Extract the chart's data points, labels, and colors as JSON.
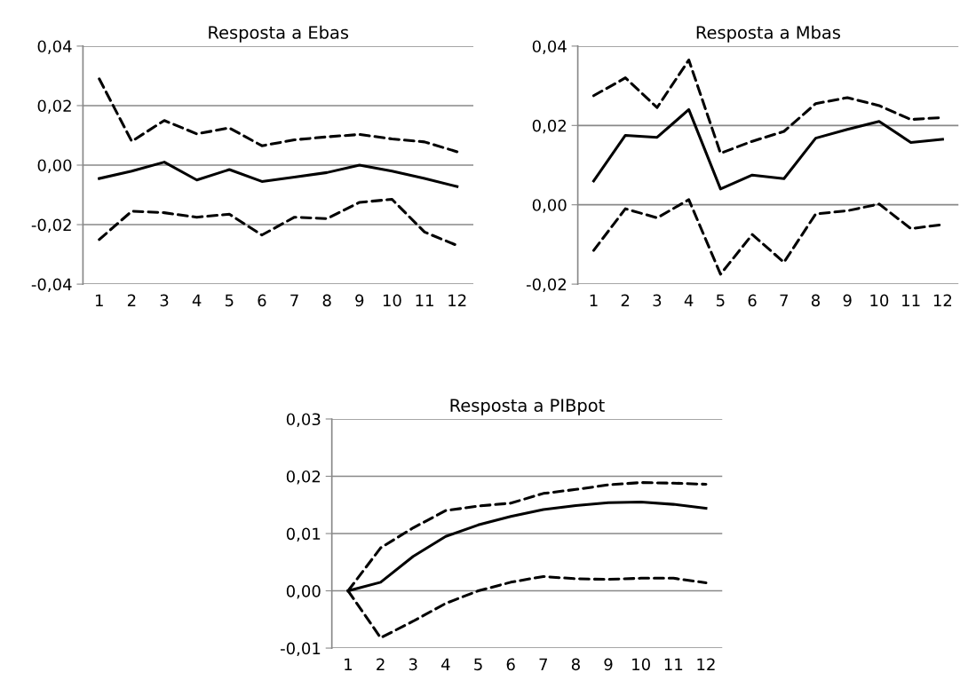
{
  "chart_data": [
    {
      "type": "line",
      "title": "Resposta a Ebas",
      "categories": [
        "1",
        "2",
        "3",
        "4",
        "5",
        "6",
        "7",
        "8",
        "9",
        "10",
        "11",
        "12"
      ],
      "ylim": [
        -0.04,
        0.04
      ],
      "yticks": [
        {
          "value": -0.04,
          "label": "-0,04"
        },
        {
          "value": -0.02,
          "label": "-0,02"
        },
        {
          "value": 0,
          "label": "0,00"
        },
        {
          "value": 0.02,
          "label": "0,02"
        },
        {
          "value": 0.04,
          "label": "0,04"
        }
      ],
      "grid": "y",
      "legend": false,
      "series": [
        {
          "color": "#000000",
          "line_style": "solid",
          "values": [
            -0.0045,
            -0.002,
            0.001,
            -0.005,
            -0.0015,
            -0.0055,
            -0.004,
            -0.0025,
            0.0,
            -0.002,
            -0.0045,
            -0.0072
          ]
        },
        {
          "color": "#000000",
          "line_style": "dashed",
          "values": [
            0.029,
            0.008,
            0.015,
            0.0105,
            0.0125,
            0.0065,
            0.0085,
            0.0095,
            0.0103,
            0.0088,
            0.0078,
            0.0045
          ]
        },
        {
          "color": "#000000",
          "line_style": "dashed",
          "values": [
            -0.025,
            -0.0155,
            -0.016,
            -0.0175,
            -0.0165,
            -0.0235,
            -0.0175,
            -0.018,
            -0.0125,
            -0.0115,
            -0.0225,
            -0.027
          ]
        }
      ]
    },
    {
      "type": "line",
      "title": "Resposta a Mbas",
      "categories": [
        "1",
        "2",
        "3",
        "4",
        "5",
        "6",
        "7",
        "8",
        "9",
        "10",
        "11",
        "12"
      ],
      "ylim": [
        -0.02,
        0.04
      ],
      "yticks": [
        {
          "value": -0.02,
          "label": "-0,02"
        },
        {
          "value": 0,
          "label": "0,00"
        },
        {
          "value": 0.02,
          "label": "0,02"
        },
        {
          "value": 0.04,
          "label": "0,04"
        }
      ],
      "grid": "y",
      "legend": false,
      "series": [
        {
          "color": "#000000",
          "line_style": "solid",
          "values": [
            0.006,
            0.0175,
            0.017,
            0.024,
            0.004,
            0.0075,
            0.0066,
            0.0168,
            0.019,
            0.021,
            0.0157,
            0.0165
          ]
        },
        {
          "color": "#000000",
          "line_style": "dashed",
          "values": [
            0.0275,
            0.032,
            0.0245,
            0.0365,
            0.013,
            0.016,
            0.0185,
            0.0255,
            0.027,
            0.025,
            0.0215,
            0.022
          ]
        },
        {
          "color": "#000000",
          "line_style": "dashed",
          "values": [
            -0.0115,
            -0.001,
            -0.0033,
            0.0013,
            -0.0175,
            -0.0075,
            -0.0145,
            -0.0023,
            -0.0015,
            0.0002,
            -0.006,
            -0.005
          ]
        }
      ]
    },
    {
      "type": "line",
      "title": "Resposta a PIBpot",
      "categories": [
        "1",
        "2",
        "3",
        "4",
        "5",
        "6",
        "7",
        "8",
        "9",
        "10",
        "11",
        "12"
      ],
      "ylim": [
        -0.01,
        0.03
      ],
      "yticks": [
        {
          "value": -0.01,
          "label": "-0,01"
        },
        {
          "value": 0,
          "label": "0,00"
        },
        {
          "value": 0.01,
          "label": "0,01"
        },
        {
          "value": 0.02,
          "label": "0,02"
        },
        {
          "value": 0.03,
          "label": "0,03"
        }
      ],
      "grid": "y",
      "legend": false,
      "series": [
        {
          "color": "#000000",
          "line_style": "solid",
          "values": [
            0.0,
            0.0015,
            0.006,
            0.0095,
            0.0115,
            0.013,
            0.0142,
            0.0149,
            0.0154,
            0.0155,
            0.0151,
            0.0144
          ]
        },
        {
          "color": "#000000",
          "line_style": "dashed",
          "values": [
            0.0,
            0.0075,
            0.011,
            0.014,
            0.0148,
            0.0153,
            0.017,
            0.0177,
            0.0185,
            0.0189,
            0.0188,
            0.0186
          ]
        },
        {
          "color": "#000000",
          "line_style": "dashed",
          "values": [
            0.0,
            -0.0082,
            -0.0053,
            -0.0022,
            0.0,
            0.0015,
            0.0025,
            0.0021,
            0.002,
            0.0022,
            0.0022,
            0.0014
          ]
        }
      ]
    }
  ]
}
